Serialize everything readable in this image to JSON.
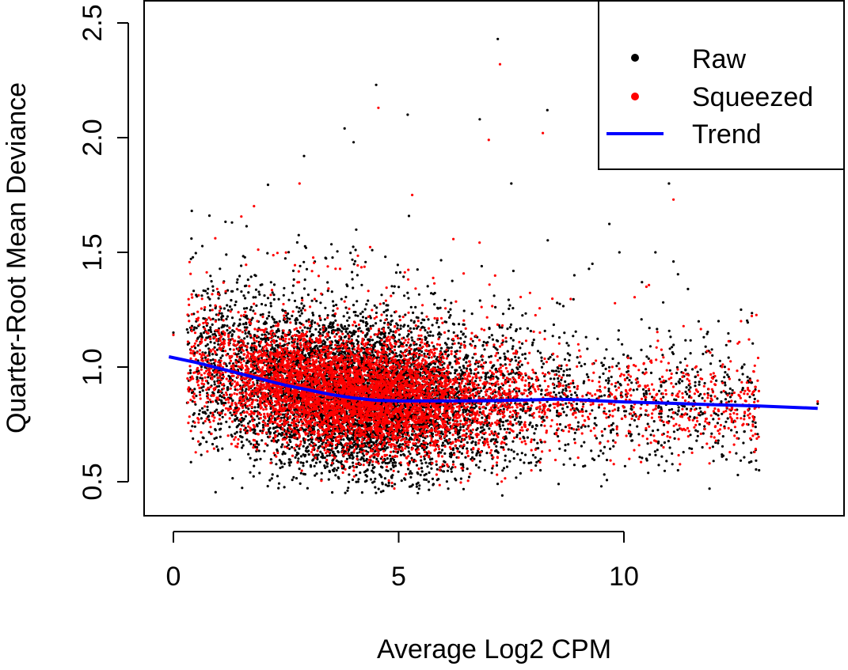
{
  "chart_data": {
    "type": "scatter",
    "title": "",
    "xlabel": "Average Log2 CPM",
    "ylabel": "Quarter-Root Mean Deviance",
    "xlim": [
      -0.6,
      14.9
    ],
    "ylim": [
      0.4,
      2.6
    ],
    "xticks": [
      0,
      5,
      10
    ],
    "xtick_labels": [
      "0",
      "5",
      "10"
    ],
    "yticks": [
      0.5,
      1.0,
      1.5,
      2.0,
      2.5
    ],
    "ytick_labels": [
      "0.5",
      "1.0",
      "1.5",
      "2.0",
      "2.5"
    ],
    "grid": false,
    "legend": {
      "placement": "top-right",
      "entries": [
        {
          "label": "Raw",
          "color": "#000000",
          "kind": "point"
        },
        {
          "label": "Squeezed",
          "color": "#ff0000",
          "kind": "point"
        },
        {
          "label": "Trend",
          "color": "#0000ff",
          "kind": "line"
        }
      ]
    },
    "series": [
      {
        "name": "Raw",
        "color": "#000000",
        "kind": "points",
        "sample_points": [
          [
            7.2,
            2.43
          ],
          [
            4.5,
            2.23
          ],
          [
            5.2,
            2.1
          ],
          [
            8.3,
            2.12
          ],
          [
            6.8,
            2.08
          ],
          [
            3.8,
            2.04
          ],
          [
            2.9,
            1.92
          ],
          [
            4.0,
            1.98
          ],
          [
            7.5,
            1.8
          ],
          [
            11.0,
            1.8
          ],
          [
            9.9,
            1.5
          ],
          [
            10.7,
            1.5
          ],
          [
            11.1,
            1.46
          ],
          [
            12.6,
            1.25
          ],
          [
            12.1,
            1.2
          ],
          [
            0.4,
            1.56
          ],
          [
            1.3,
            1.63
          ],
          [
            10.4,
            1.37
          ],
          [
            9.3,
            1.45
          ],
          [
            8.9,
            1.4
          ],
          [
            0.0,
            1.15
          ],
          [
            13.0,
            0.55
          ],
          [
            11.9,
            0.47
          ],
          [
            9.5,
            0.48
          ],
          [
            7.3,
            0.44
          ],
          [
            6.1,
            0.47
          ],
          [
            5.4,
            0.49
          ],
          [
            11.2,
            0.55
          ],
          [
            10.5,
            0.6
          ],
          [
            14.3,
            0.84
          ]
        ],
        "cloud_model": {
          "count": 7000,
          "seed": 7,
          "spread": 0.17
        }
      },
      {
        "name": "Squeezed",
        "color": "#ff0000",
        "kind": "points",
        "sample_points": [
          [
            7.25,
            2.32
          ],
          [
            4.55,
            2.13
          ],
          [
            7.0,
            1.99
          ],
          [
            8.2,
            2.02
          ],
          [
            5.3,
            1.75
          ],
          [
            11.1,
            1.73
          ],
          [
            2.8,
            1.8
          ],
          [
            10.5,
            1.35
          ],
          [
            12.6,
            1.2
          ],
          [
            0.0,
            1.14
          ],
          [
            10.6,
            0.67
          ],
          [
            12.9,
            0.63
          ],
          [
            11.9,
            0.58
          ],
          [
            14.3,
            0.85
          ]
        ],
        "cloud_model": {
          "count": 6000,
          "seed": 11,
          "spread": 0.12
        }
      },
      {
        "name": "Trend",
        "color": "#0000ff",
        "kind": "line",
        "x": [
          -0.1,
          0.5,
          1,
          1.5,
          2,
          2.5,
          3,
          3.5,
          4,
          4.5,
          5,
          6,
          7,
          8,
          8.5,
          9,
          10,
          11,
          12,
          13,
          14.3
        ],
        "y": [
          1.045,
          1.02,
          0.995,
          0.97,
          0.945,
          0.92,
          0.9,
          0.88,
          0.865,
          0.855,
          0.852,
          0.852,
          0.853,
          0.857,
          0.86,
          0.857,
          0.848,
          0.842,
          0.836,
          0.83,
          0.82
        ]
      }
    ]
  }
}
